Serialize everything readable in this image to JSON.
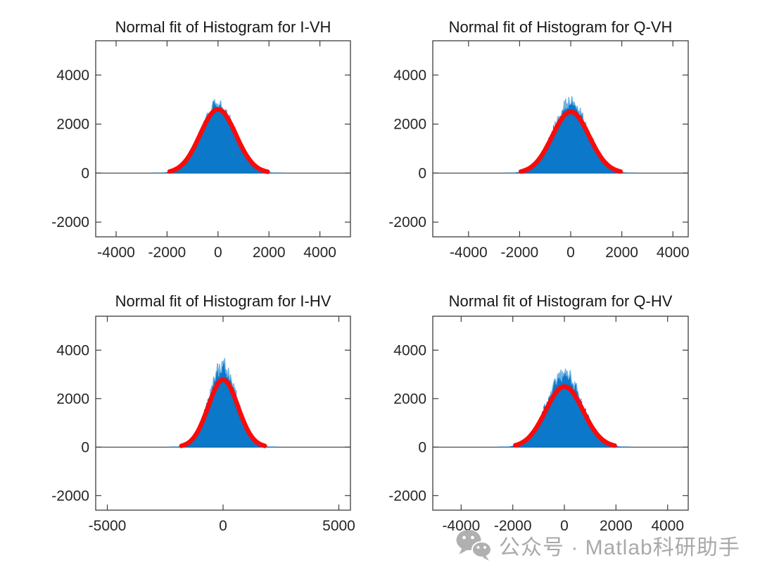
{
  "figure": {
    "background": "#ffffff",
    "axis_color": "#3d3d3d",
    "tick_label_color": "#262626"
  },
  "watermark": {
    "text": "公众号 · Matlab科研助手",
    "icon": "wechat-logo",
    "color": "#a9a9a9"
  },
  "chart_data": [
    {
      "type": "histogram",
      "title": "Normal fit of Histogram for I-VH",
      "xlabel": "",
      "ylabel": "",
      "xlim": [
        -4800,
        5200
      ],
      "ylim": [
        -2600,
        5400
      ],
      "xticks": [
        -4000,
        -2000,
        0,
        2000,
        4000
      ],
      "yticks": [
        -2000,
        0,
        2000,
        4000
      ],
      "grid": false,
      "legend": null,
      "histogram": {
        "mean": 0,
        "sigma": 680,
        "peak_count": 2800,
        "extent": 2550,
        "bin_width": 30,
        "color": "#0b78c9"
      },
      "fit": {
        "type": "normal",
        "mean": 0,
        "sigma": 700,
        "peak": 2600,
        "xrange": [
          -1900,
          1950
        ],
        "color": "#fb0a0a",
        "linewidth": 6.5
      }
    },
    {
      "type": "histogram",
      "title": "Normal fit of Histogram for Q-VH",
      "xlabel": "",
      "ylabel": "",
      "xlim": [
        -5400,
        4600
      ],
      "ylim": [
        -2600,
        5400
      ],
      "xticks": [
        -4000,
        -2000,
        0,
        2000,
        4000
      ],
      "yticks": [
        -2000,
        0,
        2000,
        4000
      ],
      "grid": false,
      "legend": null,
      "histogram": {
        "mean": 0,
        "sigma": 700,
        "peak_count": 2900,
        "extent": 2550,
        "bin_width": 30,
        "color": "#0b78c9"
      },
      "fit": {
        "type": "normal",
        "mean": 0,
        "sigma": 720,
        "peak": 2500,
        "xrange": [
          -1950,
          1950
        ],
        "color": "#fb0a0a",
        "linewidth": 6.5
      }
    },
    {
      "type": "histogram",
      "title": "Normal fit of Histogram for I-HV",
      "xlabel": "",
      "ylabel": "",
      "xlim": [
        -5500,
        5500
      ],
      "ylim": [
        -2600,
        5400
      ],
      "xticks": [
        -5000,
        0,
        5000
      ],
      "yticks": [
        -2000,
        0,
        2000,
        4000
      ],
      "grid": false,
      "legend": null,
      "histogram": {
        "mean": 0,
        "sigma": 620,
        "peak_count": 3300,
        "extent": 2300,
        "bin_width": 28,
        "color": "#0b78c9"
      },
      "fit": {
        "type": "normal",
        "mean": 0,
        "sigma": 640,
        "peak": 2780,
        "xrange": [
          -1800,
          1800
        ],
        "color": "#fb0a0a",
        "linewidth": 6.5
      }
    },
    {
      "type": "histogram",
      "title": "Normal fit of Histogram for Q-HV",
      "xlabel": "",
      "ylabel": "",
      "xlim": [
        -5100,
        4800
      ],
      "ylim": [
        -2600,
        5400
      ],
      "xticks": [
        -4000,
        -2000,
        0,
        2000,
        4000
      ],
      "yticks": [
        -2000,
        0,
        2000,
        4000
      ],
      "grid": false,
      "legend": null,
      "histogram": {
        "mean": 0,
        "sigma": 700,
        "peak_count": 3000,
        "extent": 2550,
        "bin_width": 30,
        "color": "#0b78c9"
      },
      "fit": {
        "type": "normal",
        "mean": 0,
        "sigma": 720,
        "peak": 2500,
        "xrange": [
          -1900,
          1950
        ],
        "color": "#fb0a0a",
        "linewidth": 6.5
      }
    }
  ]
}
